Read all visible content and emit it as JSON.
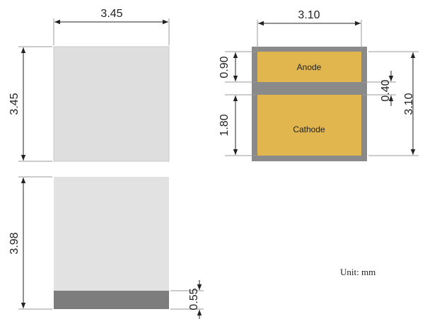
{
  "views": {
    "top": {
      "width_label": "3.45",
      "height_label": "3.45"
    },
    "side": {
      "height_label": "3.98",
      "base_label": "0.55"
    },
    "bottom": {
      "width_label": "3.10",
      "height_label": "3.10",
      "anode_height_label": "0.90",
      "gap_label": "0.40",
      "cathode_height_label": "1.80",
      "anode_label": "Anode",
      "cathode_label": "Cathode"
    }
  },
  "unit_label": "Unit: mm",
  "colors": {
    "body": "#dedede",
    "body_side": "#e2e2e2",
    "base": "#7d7d7d",
    "frame": "#8a8a8a",
    "pad": "#e1b64e",
    "text": "#222222"
  }
}
